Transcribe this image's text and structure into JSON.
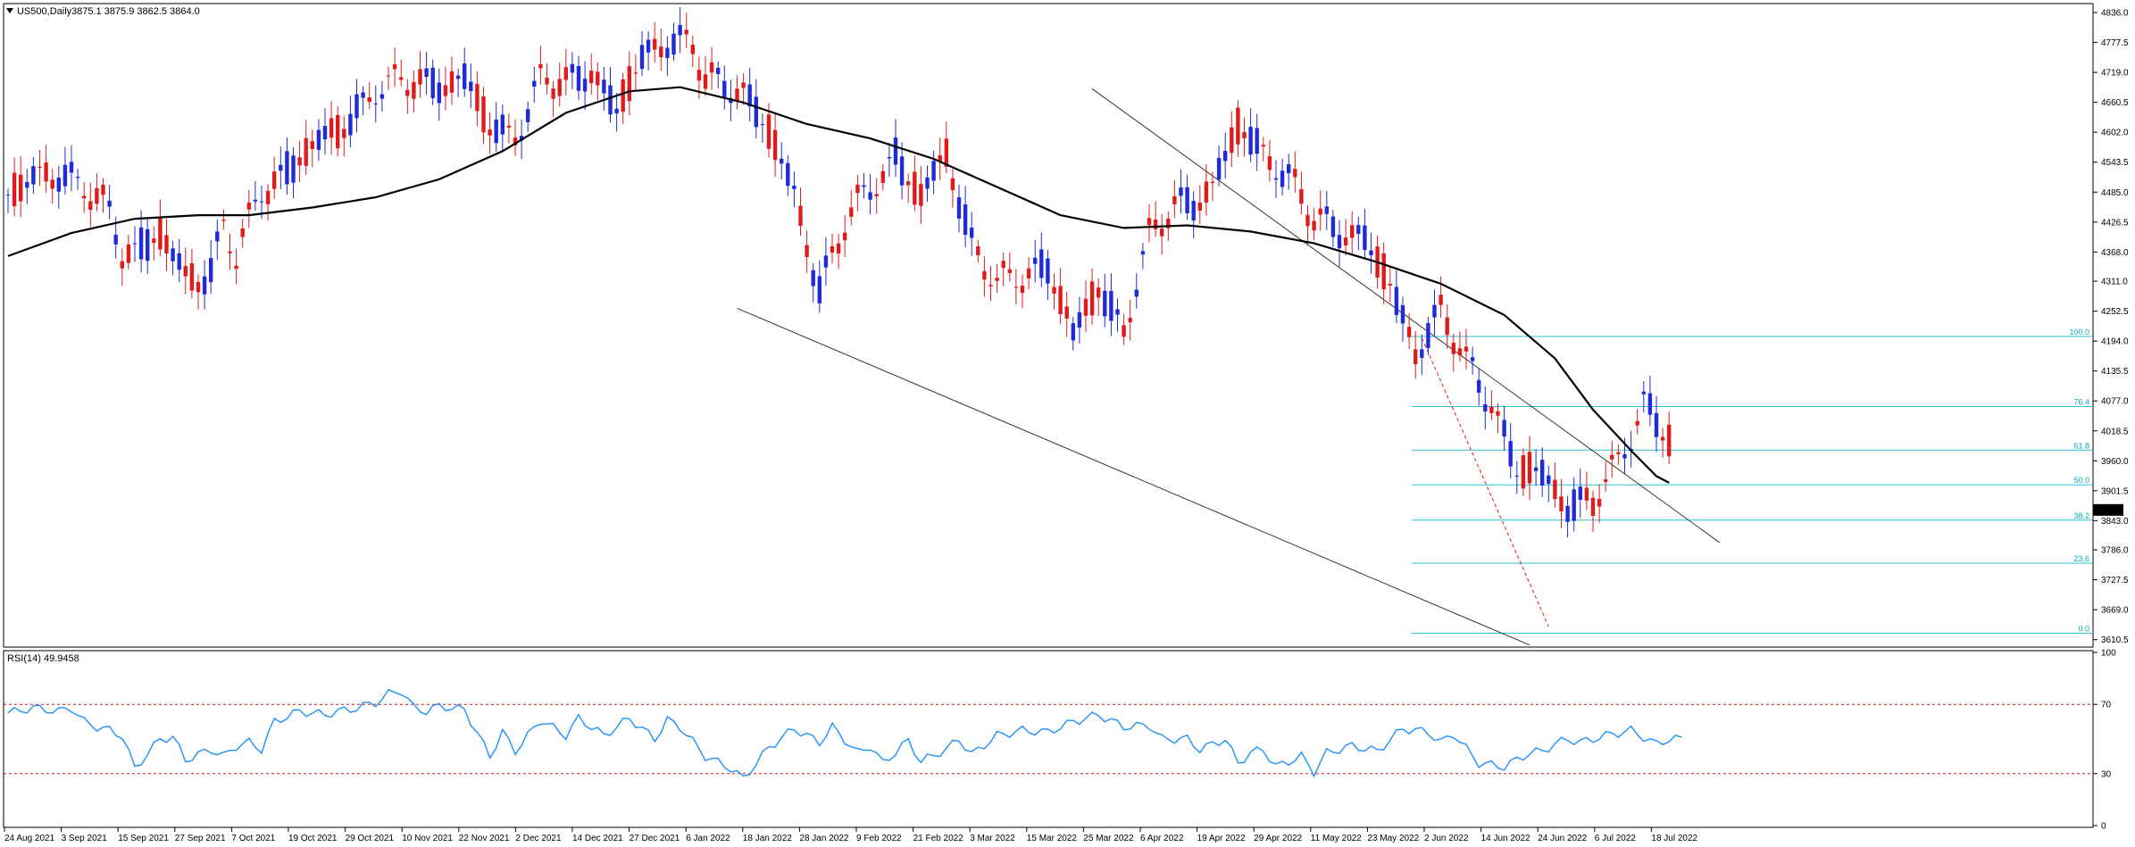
{
  "header": {
    "symbol": "US500,Daily",
    "ohlc": "3875.1 3875.9 3862.5 3864.0",
    "rsi_label": "RSI(14) 49.9458"
  },
  "colors": {
    "bull": "#1e2bd6",
    "bear": "#e01b1b",
    "ma": "#000000",
    "fib": "#2ac3cf",
    "rsi": "#1e90ff",
    "rsi_levels": "#e01b1b",
    "price_tag": "#000000"
  },
  "chart_data": [
    {
      "type": "candlestick",
      "title": "US500,Daily",
      "ylim": [
        3596,
        4850
      ],
      "price_ticks": [
        "4836.0",
        "4777.5",
        "4719.0",
        "4660.5",
        "4602.0",
        "4543.5",
        "4485.0",
        "4426.5",
        "4368.0",
        "4311.0",
        "4252.5",
        "4194.0",
        "4135.5",
        "4077.0",
        "4018.5",
        "3960.0",
        "3901.5",
        "3843.0",
        "3786.0",
        "3727.5",
        "3669.0",
        "3610.5"
      ],
      "current_price_label": "3864.0",
      "date_labels": [
        "24 Aug 2021",
        "3 Sep 2021",
        "15 Sep 2021",
        "27 Sep 2021",
        "7 Oct 2021",
        "19 Oct 2021",
        "29 Oct 2021",
        "10 Nov 2021",
        "22 Nov 2021",
        "2 Dec 2021",
        "14 Dec 2021",
        "27 Dec 2021",
        "6 Jan 2022",
        "18 Jan 2022",
        "28 Jan 2022",
        "9 Feb 2022",
        "21 Feb 2022",
        "3 Mar 2022",
        "15 Mar 2022",
        "25 Mar 2022",
        "6 Apr 2022",
        "19 Apr 2022",
        "29 Apr 2022",
        "11 May 2022",
        "23 May 2022",
        "2 Jun 2022",
        "14 Jun 2022",
        "24 Jun 2022",
        "6 Jul 2022",
        "18 Jul 2022"
      ],
      "ma_anchors": [
        [
          0,
          4360
        ],
        [
          10,
          4405
        ],
        [
          20,
          4433
        ],
        [
          30,
          4440
        ],
        [
          38,
          4440
        ],
        [
          48,
          4455
        ],
        [
          58,
          4475
        ],
        [
          68,
          4510
        ],
        [
          78,
          4565
        ],
        [
          88,
          4640
        ],
        [
          98,
          4682
        ],
        [
          106,
          4690
        ],
        [
          116,
          4660
        ],
        [
          126,
          4618
        ],
        [
          136,
          4590
        ],
        [
          146,
          4550
        ],
        [
          156,
          4495
        ],
        [
          166,
          4440
        ],
        [
          176,
          4415
        ],
        [
          186,
          4420
        ],
        [
          196,
          4408
        ],
        [
          206,
          4385
        ],
        [
          216,
          4348
        ],
        [
          226,
          4306
        ],
        [
          236,
          4245
        ],
        [
          244,
          4160
        ],
        [
          250,
          4060
        ],
        [
          256,
          3980
        ],
        [
          260,
          3930
        ],
        [
          262,
          3917
        ]
      ],
      "fibonacci": [
        {
          "label": "100.0",
          "value": 4203
        },
        {
          "label": "76.4",
          "value": 4066
        },
        {
          "label": "61.8",
          "value": 3981
        },
        {
          "label": "50.0",
          "value": 3913
        },
        {
          "label": "38.2",
          "value": 3844
        },
        {
          "label": "23.6",
          "value": 3760
        },
        {
          "label": "0.0",
          "value": 3623
        }
      ],
      "trendlines": [
        {
          "from": [
            171,
            4687
          ],
          "to": [
            270,
            3800
          ],
          "style": "solid"
        },
        {
          "from": [
            115,
            4258
          ],
          "to": [
            240,
            3600
          ],
          "style": "solid"
        },
        {
          "from": [
            223,
            4200
          ],
          "to": [
            243,
            3636
          ],
          "style": "dashed"
        }
      ]
    },
    {
      "type": "line",
      "title": "RSI(14) 49.9458",
      "ylim": [
        0,
        100
      ],
      "y_ticks": [
        "100",
        "70",
        "30",
        "0"
      ],
      "levels": [
        70,
        30
      ],
      "rsi_anchors": [
        [
          0,
          65
        ],
        [
          4,
          68
        ],
        [
          8,
          66
        ],
        [
          10,
          68
        ],
        [
          12,
          60
        ],
        [
          14,
          57
        ],
        [
          16,
          55
        ],
        [
          18,
          52
        ],
        [
          20,
          33
        ],
        [
          24,
          50
        ],
        [
          26,
          51
        ],
        [
          28,
          38
        ],
        [
          32,
          44
        ],
        [
          34,
          40
        ],
        [
          36,
          46
        ],
        [
          38,
          48
        ],
        [
          40,
          44
        ],
        [
          42,
          60
        ],
        [
          46,
          66
        ],
        [
          50,
          64
        ],
        [
          52,
          66
        ],
        [
          54,
          67
        ],
        [
          58,
          71
        ],
        [
          60,
          76
        ],
        [
          62,
          78
        ],
        [
          64,
          68
        ],
        [
          66,
          66
        ],
        [
          68,
          69
        ],
        [
          70,
          68
        ],
        [
          72,
          67
        ],
        [
          76,
          40
        ],
        [
          78,
          54
        ],
        [
          80,
          43
        ],
        [
          84,
          61
        ],
        [
          88,
          52
        ],
        [
          90,
          62
        ],
        [
          94,
          52
        ],
        [
          96,
          57
        ],
        [
          98,
          62
        ],
        [
          102,
          50
        ],
        [
          104,
          61
        ],
        [
          106,
          57
        ],
        [
          110,
          40
        ],
        [
          114,
          33
        ],
        [
          116,
          27
        ],
        [
          120,
          45
        ],
        [
          124,
          56
        ],
        [
          128,
          48
        ],
        [
          130,
          57
        ],
        [
          134,
          42
        ],
        [
          136,
          46
        ],
        [
          138,
          36
        ],
        [
          142,
          49
        ],
        [
          144,
          37
        ],
        [
          148,
          44
        ],
        [
          150,
          50
        ],
        [
          152,
          41
        ],
        [
          156,
          52
        ],
        [
          160,
          55
        ],
        [
          164,
          54
        ],
        [
          168,
          60
        ],
        [
          172,
          64
        ],
        [
          176,
          57
        ],
        [
          180,
          58
        ],
        [
          182,
          50
        ],
        [
          186,
          50
        ],
        [
          188,
          44
        ],
        [
          192,
          50
        ],
        [
          194,
          36
        ],
        [
          196,
          42
        ],
        [
          198,
          44
        ],
        [
          200,
          34
        ],
        [
          204,
          40
        ],
        [
          206,
          31
        ],
        [
          208,
          42
        ],
        [
          212,
          46
        ],
        [
          216,
          43
        ],
        [
          220,
          56
        ],
        [
          224,
          54
        ],
        [
          226,
          48
        ],
        [
          228,
          53
        ],
        [
          232,
          36
        ],
        [
          236,
          34
        ],
        [
          240,
          42
        ],
        [
          242,
          43
        ],
        [
          244,
          47
        ],
        [
          246,
          50
        ],
        [
          248,
          48
        ],
        [
          252,
          52
        ],
        [
          256,
          55
        ],
        [
          260,
          47
        ],
        [
          262,
          50
        ],
        [
          264,
          50
        ]
      ]
    }
  ]
}
